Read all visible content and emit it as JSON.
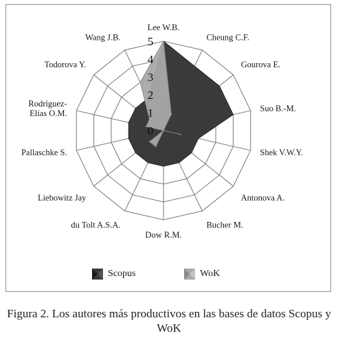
{
  "chart_data": {
    "type": "radar",
    "categories": [
      "Lee W.B.",
      "Cheung C.F.",
      "Gourova E.",
      "Suo B.-M.",
      "Shek V.W.Y.",
      "Antonova A.",
      "Bucher M.",
      "Dow R.M.",
      "du Tolt A.S.A.",
      "Liebowitz Jay",
      "Pallaschke S.",
      "Rodríguez-Elías O.M.",
      "Todorova Y.",
      "Wang J.B."
    ],
    "category_lines": [
      [
        "Lee W.B."
      ],
      [
        "Cheung C.F."
      ],
      [
        "Gourova E."
      ],
      [
        "Suo B.-M."
      ],
      [
        "Shek V.W.Y."
      ],
      [
        "Antonova A."
      ],
      [
        "Bucher M."
      ],
      [
        "Dow R.M."
      ],
      [
        "du Tolt A.S.A."
      ],
      [
        "Liebowitz Jay"
      ],
      [
        "Pallaschke S."
      ],
      [
        "Rodríguez-",
        "Elías O.M."
      ],
      [
        "Todorova Y."
      ],
      [
        "Wang J.B."
      ]
    ],
    "ticks": [
      "0",
      "1",
      "2",
      "3",
      "4",
      "5"
    ],
    "rlim": [
      0,
      5
    ],
    "series": [
      {
        "name": "Scopus",
        "values": [
          5,
          4,
          4,
          4,
          2,
          2,
          2,
          2,
          2,
          2,
          2,
          2,
          2,
          2
        ],
        "color": "#3a3a3a"
      },
      {
        "name": "WoK",
        "values": [
          5,
          1,
          0,
          0,
          1,
          0,
          0,
          0,
          1,
          1,
          0,
          1,
          1,
          3
        ],
        "color": "#a9a9a9"
      }
    ],
    "grid": true,
    "legend_position": "bottom"
  },
  "legend": [
    {
      "label": "Scopus",
      "color": "#3a3a3a"
    },
    {
      "label": "WoK",
      "color": "#a9a9a9"
    }
  ],
  "caption": {
    "label": "Figura 2.",
    "text": "Los autores más productivos en las bases de datos Scopus y WoK"
  }
}
